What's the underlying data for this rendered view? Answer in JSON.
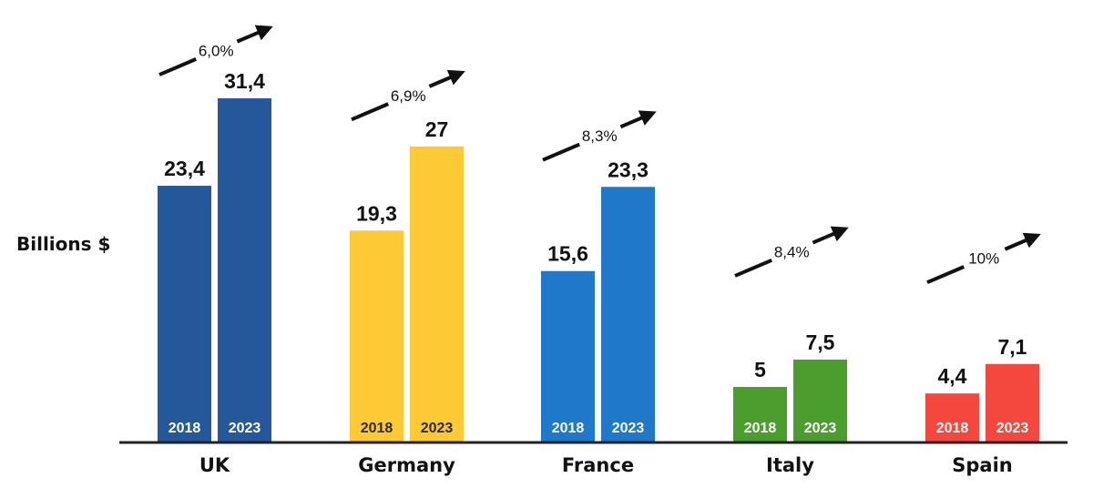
{
  "chart_data": {
    "type": "bar",
    "ylabel": "Billions $",
    "categories": [
      "UK",
      "Germany",
      "France",
      "Italy",
      "Spain"
    ],
    "bar_labels": [
      "2018",
      "2023"
    ],
    "values": [
      [
        23.4,
        31.4
      ],
      [
        19.3,
        27
      ],
      [
        15.6,
        23.3
      ],
      [
        5,
        7.5
      ],
      [
        4.4,
        7.1
      ]
    ],
    "value_labels": [
      [
        "23,4",
        "31,4"
      ],
      [
        "19,3",
        "27"
      ],
      [
        "15,6",
        "23,3"
      ],
      [
        "5",
        "7,5"
      ],
      [
        "4,4",
        "7,1"
      ]
    ],
    "growth_labels": [
      "6,0%",
      "6,9%",
      "8,3%",
      "8,4%",
      "10%"
    ],
    "colors": [
      "#24589a",
      "#fdc934",
      "#1f78c9",
      "#4b9e2d",
      "#f4483f"
    ],
    "ylim": [
      0,
      35
    ],
    "grid": false
  }
}
